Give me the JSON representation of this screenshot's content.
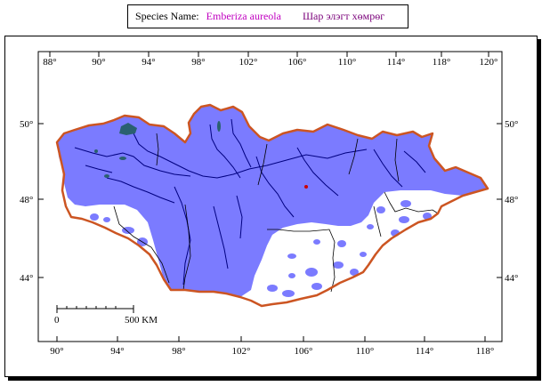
{
  "species": {
    "label": "Species Name:",
    "latin_name": "Emberiza aureola",
    "local_name": "Шар элэгт хөмрөг"
  },
  "map": {
    "top_longitudes": [
      "88°",
      "90°",
      "94°",
      "98°",
      "102°",
      "106°",
      "110°",
      "114°",
      "118°",
      "120°"
    ],
    "bottom_longitudes": [
      "90°",
      "94°",
      "98°",
      "102°",
      "106°",
      "110°",
      "114°",
      "118°"
    ],
    "left_latitudes": [
      "50°",
      "48°",
      "44°"
    ],
    "right_latitudes": [
      "50°",
      "48°",
      "44°"
    ],
    "scale_bar": {
      "start": "0",
      "end": "500 KM"
    },
    "colors": {
      "range_fill": "#7b7bff",
      "border": "#cc5522",
      "lakes": "#2a6070",
      "rivers": "#000080"
    }
  }
}
